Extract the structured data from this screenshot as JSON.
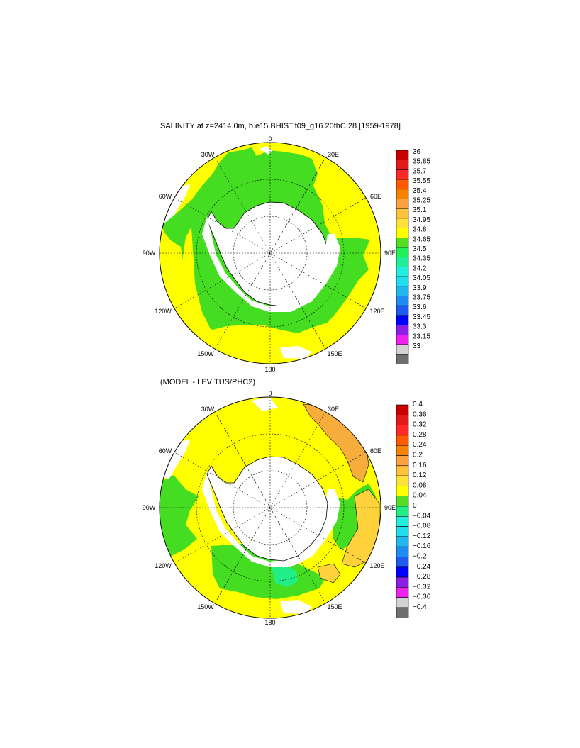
{
  "colors": {
    "yellow": "#ffff00",
    "green": "#44dd22",
    "light_orange": "#ffd23c",
    "orange": "#f7ad3c",
    "teal_green": "#22ee88",
    "land_white": "#ffffff",
    "coast": "#000000"
  },
  "map1": {
    "title": "SALINITY at z=2414.0m, b.e15.BHIST.f09_g16.20thC.28 [1959-1978]",
    "lon_labels": {
      "lon_0": "0",
      "lon_30e": "30E",
      "lon_60e": "60E",
      "lon_90e": "90E",
      "lon_120e": "120E",
      "lon_150e": "150E",
      "lon_180": "180",
      "lon_150w": "150W",
      "lon_120w": "120W",
      "lon_90w": "90W",
      "lon_60w": "60W",
      "lon_30w": "30W"
    },
    "colorbar": {
      "labels": [
        "36",
        "35.85",
        "35.7",
        "35.55",
        "35.4",
        "35.25",
        "35.1",
        "34.95",
        "34.8",
        "34.65",
        "34.5",
        "34.35",
        "34.2",
        "34.05",
        "33.9",
        "33.75",
        "33.6",
        "33.45",
        "33.3",
        "33.15",
        "33"
      ],
      "colors": [
        "#c80000",
        "#e21919",
        "#ff2828",
        "#ff5a00",
        "#f78200",
        "#fba140",
        "#ffc23c",
        "#ffe13c",
        "#ffff00",
        "#55dd22",
        "#22ee55",
        "#22ee99",
        "#22eedd",
        "#22ddee",
        "#22b8ee",
        "#1e8cf0",
        "#1e5af0",
        "#0000ff",
        "#8c1ee6",
        "#ee22ee",
        "#d3d3d3",
        "#6e6e6e"
      ]
    }
  },
  "map2": {
    "title": "(MODEL - LEVITUS/PHC2)",
    "lon_labels": {
      "lon_0": "0",
      "lon_30e": "30E",
      "lon_60e": "60E",
      "lon_90e": "90E",
      "lon_120e": "120E",
      "lon_150e": "150E",
      "lon_180": "180",
      "lon_150w": "150W",
      "lon_120w": "120W",
      "lon_90w": "90W",
      "lon_60w": "60W",
      "lon_30w": "30W"
    },
    "colorbar": {
      "labels": [
        "0.4",
        "0.36",
        "0.32",
        "0.28",
        "0.24",
        "0.2",
        "0.16",
        "0.12",
        "0.08",
        "0.04",
        "0",
        "−0.04",
        "−0.08",
        "−0.12",
        "−0.16",
        "−0.2",
        "−0.24",
        "−0.28",
        "−0.32",
        "−0.36",
        "−0.4"
      ],
      "colors": [
        "#c80000",
        "#e21919",
        "#ff2828",
        "#ff5a00",
        "#f78200",
        "#fba140",
        "#ffc23c",
        "#ffe13c",
        "#ffff00",
        "#55dd22",
        "#22ee88",
        "#22eedd",
        "#22ddee",
        "#22b8ee",
        "#1e8cf0",
        "#1e5af0",
        "#0000ff",
        "#8c1ee6",
        "#ee22ee",
        "#d3d3d3",
        "#6e6e6e"
      ]
    }
  }
}
